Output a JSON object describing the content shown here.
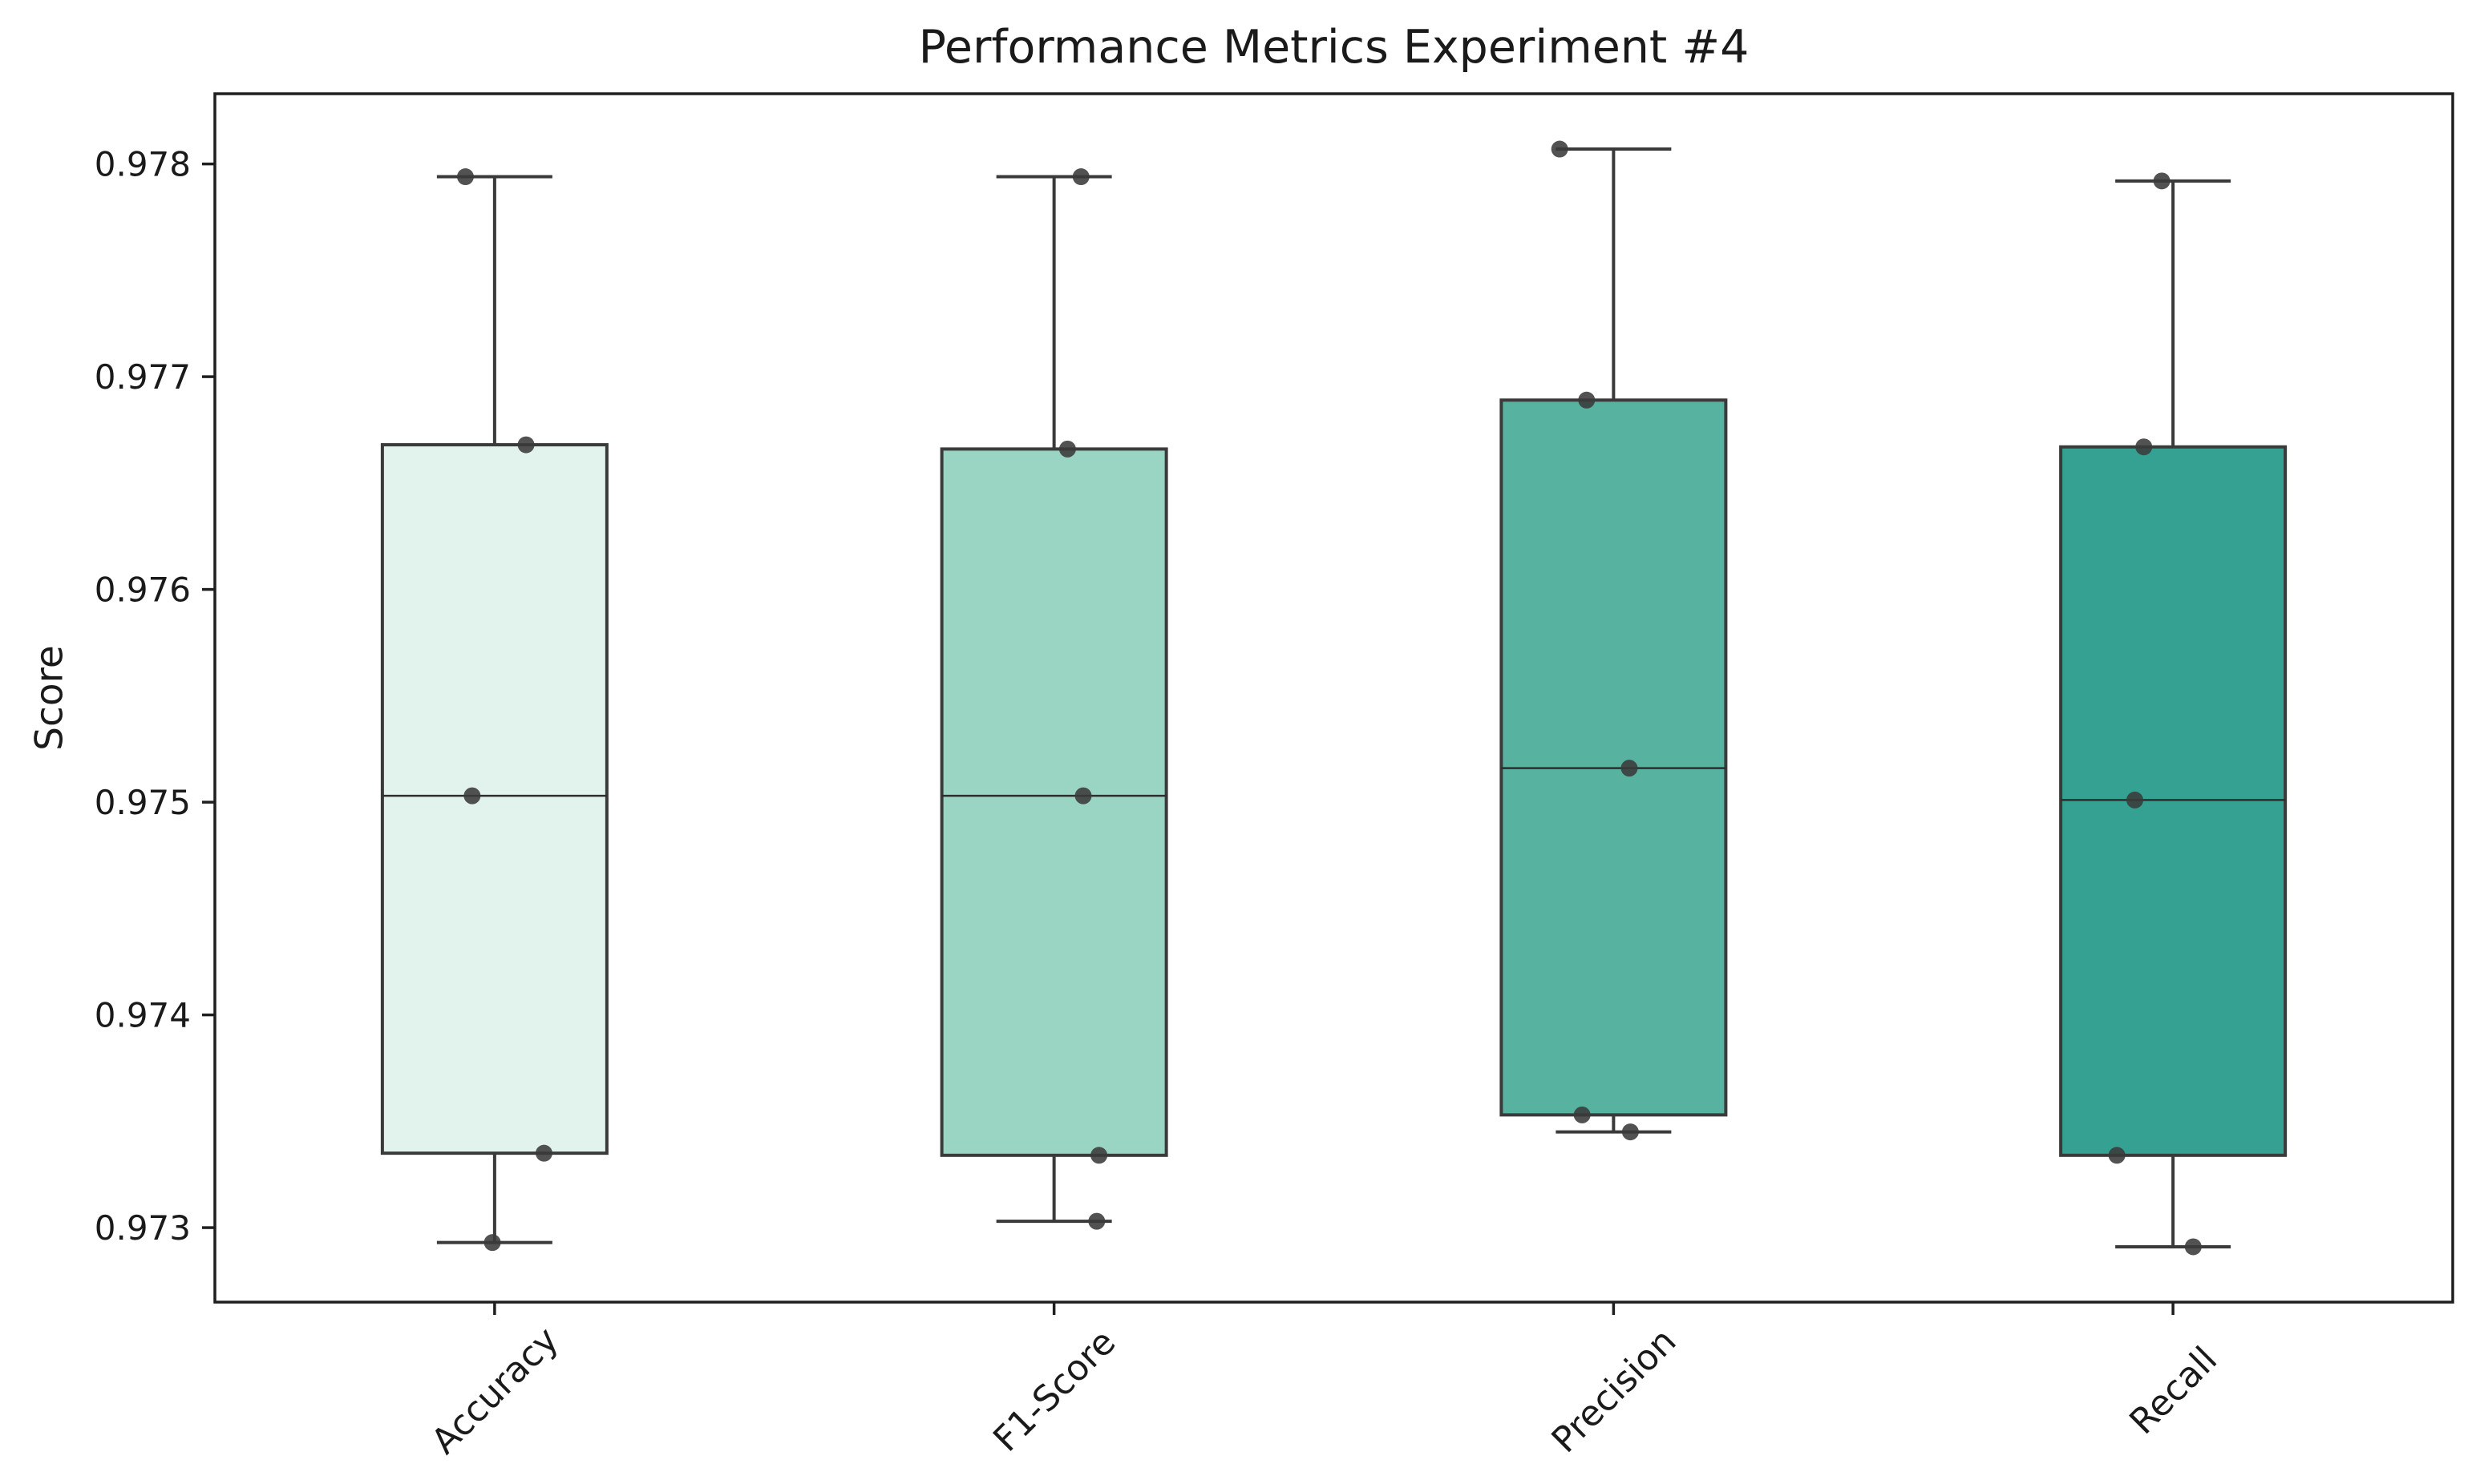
{
  "figure": {
    "background": "#ffffff"
  },
  "chart_data": {
    "type": "box",
    "title": "Performance Metrics Experiment #4",
    "ylabel": "Score",
    "xlabel": "",
    "categories": [
      "Accuracy",
      "F1-Score",
      "Precision",
      "Recall"
    ],
    "y_ticks": [
      0.973,
      0.974,
      0.975,
      0.976,
      0.977,
      0.978
    ],
    "y_tick_labels": [
      "0.973",
      "0.974",
      "0.975",
      "0.976",
      "0.977",
      "0.978"
    ],
    "ylim": [
      0.97265,
      0.97833
    ],
    "grid": false,
    "legend_position": "none",
    "colors": {
      "box_fills": [
        "#e2f2ec",
        "#9ad5c3",
        "#57b2a0",
        "#34a192"
      ],
      "box_edge": "#3a3a3a",
      "whisker": "#3a3a3a",
      "median": "#2e2e2e",
      "marker": "#3a3a3a",
      "spine": "#1f1f1f",
      "text": "#1a1a1a"
    },
    "series": [
      {
        "name": "Accuracy",
        "min": 0.97293,
        "q1": 0.97335,
        "median": 0.97503,
        "q3": 0.97668,
        "max": 0.97794,
        "points": [
          {
            "value": 0.97794,
            "jitter": -0.13
          },
          {
            "value": 0.97668,
            "jitter": 0.14
          },
          {
            "value": 0.97503,
            "jitter": -0.1
          },
          {
            "value": 0.97335,
            "jitter": 0.22
          },
          {
            "value": 0.97293,
            "jitter": -0.01
          }
        ]
      },
      {
        "name": "F1-Score",
        "min": 0.97303,
        "q1": 0.97334,
        "median": 0.97503,
        "q3": 0.97666,
        "max": 0.97794,
        "points": [
          {
            "value": 0.97794,
            "jitter": 0.12
          },
          {
            "value": 0.97666,
            "jitter": 0.06
          },
          {
            "value": 0.97503,
            "jitter": 0.13
          },
          {
            "value": 0.97334,
            "jitter": 0.2
          },
          {
            "value": 0.97303,
            "jitter": 0.19
          }
        ]
      },
      {
        "name": "Precision",
        "min": 0.97345,
        "q1": 0.97353,
        "median": 0.97516,
        "q3": 0.97689,
        "max": 0.97807,
        "points": [
          {
            "value": 0.97807,
            "jitter": -0.24
          },
          {
            "value": 0.97689,
            "jitter": -0.12
          },
          {
            "value": 0.97516,
            "jitter": 0.07
          },
          {
            "value": 0.97353,
            "jitter": -0.14
          },
          {
            "value": 0.97345,
            "jitter": 0.075
          }
        ]
      },
      {
        "name": "Recall",
        "min": 0.97291,
        "q1": 0.97334,
        "median": 0.97501,
        "q3": 0.97667,
        "max": 0.97792,
        "points": [
          {
            "value": 0.97792,
            "jitter": -0.05
          },
          {
            "value": 0.97667,
            "jitter": -0.13
          },
          {
            "value": 0.97501,
            "jitter": -0.17
          },
          {
            "value": 0.97334,
            "jitter": -0.25
          },
          {
            "value": 0.97291,
            "jitter": 0.09
          }
        ]
      }
    ]
  }
}
